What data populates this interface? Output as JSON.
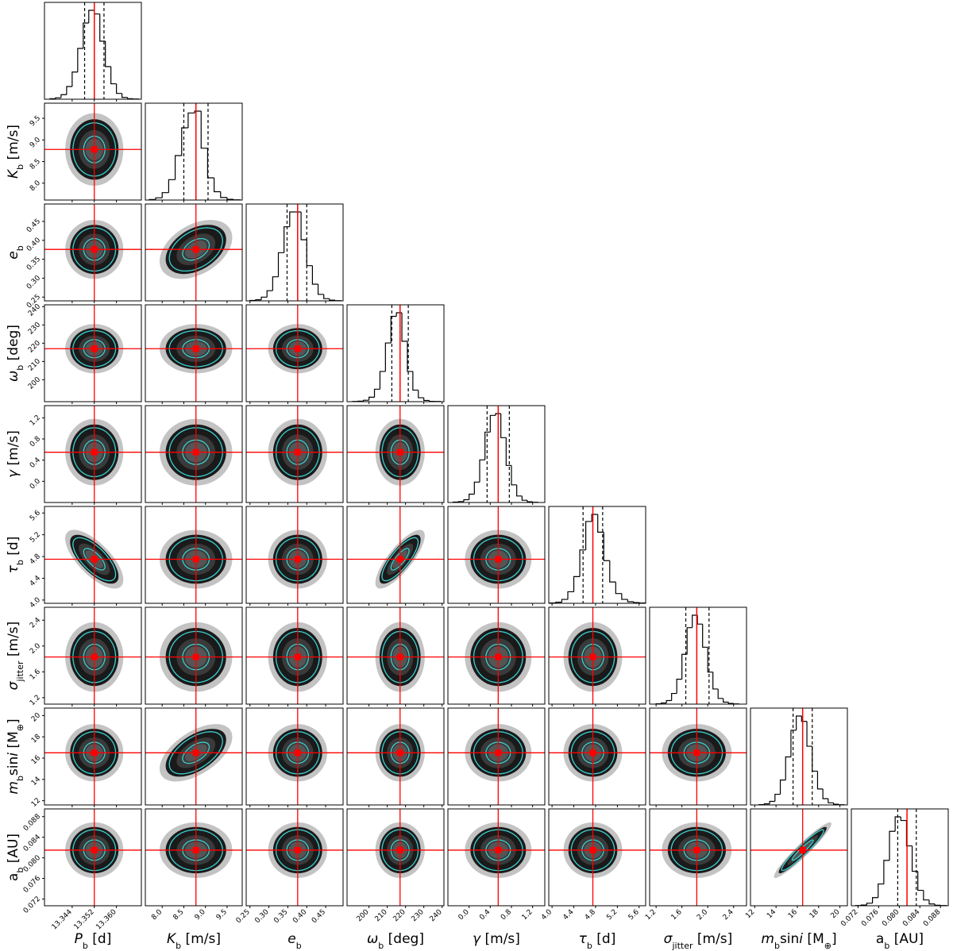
{
  "chart_data": {
    "type": "corner",
    "colors": {
      "truth": "#ff0000",
      "contour": "#3ccfd0",
      "hist": "#000000",
      "sample": "#1a1a1a"
    },
    "params": [
      {
        "label": [
          [
            "P",
            "it"
          ],
          [
            "b",
            "sub"
          ],
          [
            " [d]",
            "rm"
          ]
        ],
        "lim": [
          13.334,
          13.369
        ],
        "ticks": [
          13.344,
          13.352,
          {
            "value": 13.36,
            "label": "13.360"
          }
        ],
        "truth": 13.352,
        "quantiles": [
          13.3485,
          13.3555
        ],
        "bins": [
          13.336,
          13.338,
          13.34,
          13.342,
          13.344,
          13.346,
          13.348,
          13.35,
          13.352,
          13.354,
          13.356,
          13.358,
          13.36,
          13.362,
          13.364,
          13.366,
          13.368
        ],
        "counts": [
          3,
          8,
          25,
          70,
          150,
          280,
          420,
          490,
          470,
          320,
          180,
          85,
          32,
          10,
          3,
          1
        ]
      },
      {
        "label": [
          [
            "K",
            "it"
          ],
          [
            "b",
            "sub"
          ],
          [
            " [m/s]",
            "rm"
          ]
        ],
        "lim": [
          7.61,
          9.85
        ],
        "ticks": [
          {
            "value": 8,
            "label": "8.0"
          },
          8.5,
          {
            "value": 9,
            "label": "9.0"
          },
          9.5
        ],
        "truth": 8.78,
        "quantiles": [
          8.5,
          9.06
        ],
        "bins": [
          7.7,
          7.85,
          8.0,
          8.15,
          8.3,
          8.45,
          8.6,
          8.75,
          8.9,
          9.05,
          9.2,
          9.35,
          9.5,
          9.65,
          9.8
        ],
        "counts": [
          3,
          12,
          40,
          110,
          240,
          390,
          470,
          480,
          280,
          120,
          45,
          14,
          4,
          1
        ]
      },
      {
        "label": [
          [
            "e",
            "it"
          ],
          [
            "b",
            "sub"
          ]
        ],
        "lim": [
          0.24,
          0.496
        ],
        "ticks": [
          0.25,
          {
            "value": 0.3,
            "label": "0.30"
          },
          0.35,
          {
            "value": 0.4,
            "label": "0.40"
          },
          0.45
        ],
        "truth": 0.376,
        "quantiles": [
          0.348,
          0.4
        ],
        "bins": [
          0.25,
          0.265,
          0.28,
          0.295,
          0.31,
          0.325,
          0.34,
          0.355,
          0.37,
          0.385,
          0.4,
          0.415,
          0.43,
          0.445,
          0.46,
          0.475,
          0.49
        ],
        "counts": [
          2,
          6,
          20,
          55,
          130,
          260,
          400,
          480,
          480,
          330,
          190,
          90,
          35,
          12,
          4,
          1
        ]
      },
      {
        "label": [
          [
            "ω",
            "it"
          ],
          [
            "b",
            "sub"
          ],
          [
            " [deg]",
            "rm"
          ]
        ],
        "lim": [
          188,
          241
        ],
        "ticks": [
          200,
          210,
          220,
          230,
          240
        ],
        "truth": 217,
        "quantiles": [
          212.5,
          221.5
        ],
        "bins": [
          191,
          194,
          197,
          200,
          203,
          206,
          209,
          212,
          215,
          218,
          221,
          224,
          227,
          230,
          233,
          236,
          239
        ],
        "counts": [
          1,
          3,
          8,
          25,
          70,
          170,
          330,
          480,
          500,
          340,
          170,
          65,
          22,
          7,
          2,
          1
        ]
      },
      {
        "label": [
          [
            "γ",
            "it"
          ],
          [
            " [m/s]",
            "rm"
          ]
        ],
        "lim": [
          -0.4,
          1.43
        ],
        "ticks": [
          {
            "value": 0,
            "label": "0.0"
          },
          0.4,
          0.8,
          1.2
        ],
        "truth": 0.55,
        "quantiles": [
          0.34,
          0.76
        ],
        "bins": [
          -0.3,
          -0.2,
          -0.1,
          0,
          0.1,
          0.2,
          0.3,
          0.4,
          0.5,
          0.6,
          0.7,
          0.8,
          0.9,
          1.0,
          1.1,
          1.2,
          1.3
        ],
        "counts": [
          2,
          5,
          15,
          45,
          110,
          230,
          380,
          470,
          480,
          350,
          200,
          95,
          35,
          12,
          4,
          1
        ]
      },
      {
        "label": [
          [
            "τ",
            "it"
          ],
          [
            "b",
            "sub"
          ],
          [
            " [d]",
            "rm"
          ]
        ],
        "lim": [
          3.94,
          5.72
        ],
        "ticks": [
          {
            "value": 4,
            "label": "4.0"
          },
          4.4,
          4.8,
          5.2,
          5.6
        ],
        "truth": 4.75,
        "quantiles": [
          4.57,
          4.93
        ],
        "bins": [
          3.96,
          4.07,
          4.18,
          4.29,
          4.4,
          4.51,
          4.62,
          4.73,
          4.84,
          4.95,
          5.06,
          5.17,
          5.28,
          5.39,
          5.5,
          5.61,
          5.72
        ],
        "counts": [
          2,
          6,
          22,
          65,
          150,
          300,
          460,
          500,
          400,
          240,
          120,
          55,
          22,
          9,
          4,
          2
        ]
      },
      {
        "label": [
          [
            "σ",
            "it"
          ],
          [
            "jitter",
            "sub"
          ],
          [
            " [m/s]",
            "rm"
          ]
        ],
        "lim": [
          1.1,
          2.6
        ],
        "ticks": [
          1.2,
          1.6,
          {
            "value": 2,
            "label": "2.0"
          },
          2.4
        ],
        "truth": 1.83,
        "quantiles": [
          1.66,
          2.02
        ],
        "bins": [
          1.2,
          1.28,
          1.36,
          1.44,
          1.52,
          1.6,
          1.68,
          1.76,
          1.84,
          1.92,
          2.0,
          2.08,
          2.16,
          2.24,
          2.32,
          2.4,
          2.48
        ],
        "counts": [
          2,
          6,
          20,
          60,
          140,
          280,
          430,
          500,
          450,
          320,
          180,
          85,
          32,
          11,
          4,
          1
        ]
      },
      {
        "label": [
          [
            "m",
            "it"
          ],
          [
            "b",
            "sub"
          ],
          [
            "sin",
            "rm"
          ],
          [
            "i",
            "it"
          ],
          [
            " [M",
            "rm"
          ],
          [
            "⊕",
            "sub"
          ],
          [
            "]",
            "rm"
          ]
        ],
        "lim": [
          11.6,
          20.7
        ],
        "ticks": [
          12,
          14,
          16,
          18,
          20
        ],
        "truth": 16.5,
        "quantiles": [
          15.6,
          17.4
        ],
        "bins": [
          12.4,
          12.9,
          13.4,
          13.9,
          14.4,
          14.9,
          15.4,
          15.9,
          16.4,
          16.9,
          17.4,
          17.9,
          18.4,
          18.9,
          19.4,
          19.9,
          20.4
        ],
        "counts": [
          2,
          6,
          20,
          60,
          140,
          270,
          420,
          500,
          470,
          330,
          190,
          90,
          35,
          12,
          4,
          1
        ]
      },
      {
        "label": [
          [
            "a",
            "rm"
          ],
          [
            "b",
            "sub"
          ],
          [
            " [AU]",
            "rm"
          ]
        ],
        "lim": [
          0.0707,
          0.0895
        ],
        "ticks": [
          0.072,
          0.076,
          {
            "value": 0.08,
            "label": "0.080"
          },
          0.084,
          0.088
        ],
        "truth": 0.0815,
        "quantiles": [
          0.0797,
          0.0833
        ],
        "bins": [
          0.0715,
          0.0726,
          0.0737,
          0.0748,
          0.0759,
          0.077,
          0.0781,
          0.0792,
          0.0803,
          0.0814,
          0.0825,
          0.0836,
          0.0847,
          0.0858,
          0.0869,
          0.088,
          0.0891
        ],
        "counts": [
          1,
          4,
          14,
          45,
          120,
          250,
          410,
          490,
          470,
          330,
          190,
          85,
          32,
          10,
          3,
          1
        ]
      }
    ],
    "correlations": [
      [
        5,
        0,
        -0.7
      ],
      [
        2,
        1,
        0.4
      ],
      [
        7,
        1,
        0.55
      ],
      [
        5,
        3,
        0.8
      ],
      [
        8,
        7,
        0.95
      ]
    ]
  }
}
